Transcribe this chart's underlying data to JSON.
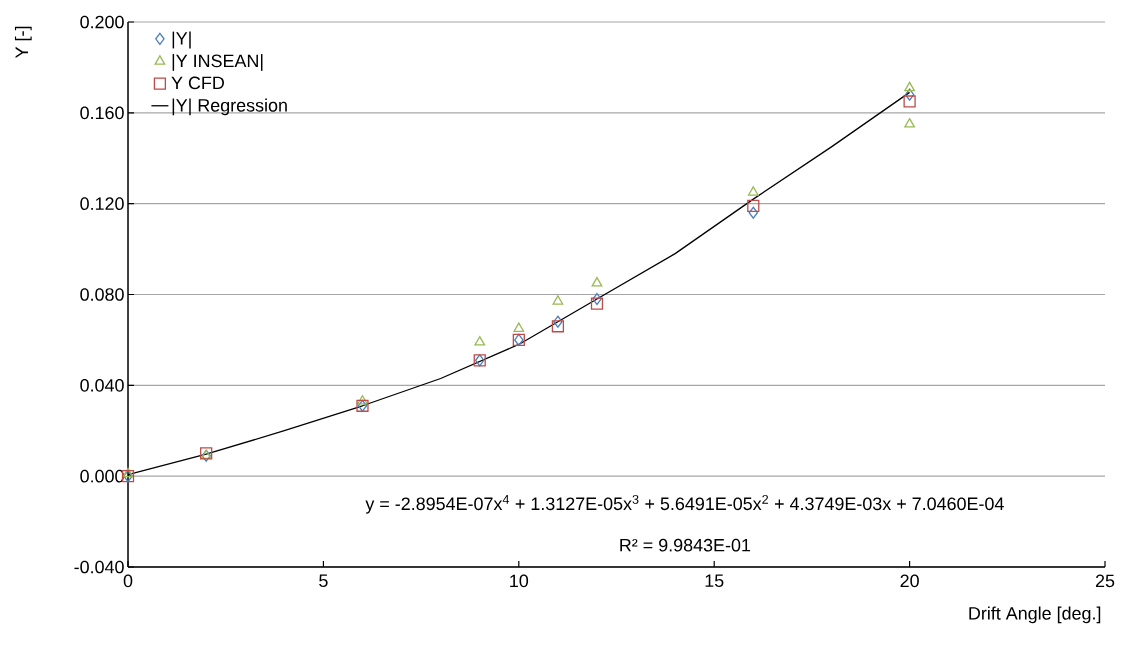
{
  "chart_data": {
    "type": "scatter",
    "xlabel": "Drift Angle [deg.]",
    "ylabel": "Y [-]",
    "xlim": [
      0,
      25
    ],
    "ylim": [
      -0.04,
      0.2
    ],
    "xticks": [
      0,
      5,
      10,
      15,
      20,
      25
    ],
    "yticks": [
      {
        "value": -0.04,
        "label": "-0.040"
      },
      {
        "value": 0,
        "label": "0.000"
      },
      {
        "value": 0.04,
        "label": "0.040"
      },
      {
        "value": 0.08,
        "label": "0.080"
      },
      {
        "value": 0.12,
        "label": "0.120"
      },
      {
        "value": 0.16,
        "label": "0.160"
      },
      {
        "value": 0.2,
        "label": "0.200"
      }
    ],
    "grid": "y",
    "legend": "top left",
    "series": [
      {
        "name": "|Y|",
        "color": "#4a7ebb",
        "marker": "diamond",
        "x": [
          0,
          2,
          6,
          9,
          10,
          11,
          12,
          16,
          20
        ],
        "values": [
          0.0,
          0.009,
          0.031,
          0.051,
          0.06,
          0.068,
          0.078,
          0.116,
          0.168
        ]
      },
      {
        "name": "|Y INSEAN|",
        "color": "#98b954",
        "marker": "triangle",
        "x": [
          0,
          2,
          6,
          9,
          10,
          11,
          12,
          16,
          20,
          20
        ],
        "values": [
          0.001,
          0.009,
          0.033,
          0.059,
          0.065,
          0.077,
          0.085,
          0.125,
          0.171,
          0.155
        ]
      },
      {
        "name": "Y CFD",
        "color": "#be4b48",
        "marker": "square",
        "x": [
          0,
          2,
          6,
          9,
          10,
          11,
          12,
          16,
          20
        ],
        "values": [
          0.0,
          0.01,
          0.031,
          0.051,
          0.06,
          0.066,
          0.076,
          0.119,
          0.165
        ]
      },
      {
        "name": "|Y| Regression",
        "type": "line",
        "color": "#000000",
        "marker": "none",
        "line_style": "solid",
        "x": [
          0,
          2,
          4,
          6,
          8,
          10,
          12,
          14,
          16,
          18,
          20
        ],
        "values": [
          0.0007,
          0.0097,
          0.02,
          0.031,
          0.043,
          0.058,
          0.078,
          0.098,
          0.122,
          0.145,
          0.169
        ]
      }
    ],
    "annotations": [
      "y = -2.8954E-07x$^{4}$ + 1.3127E-05x$^{3}$ + 5.6491E-05x$^{2}$ + 4.3749E-03x + 7.0460E-04",
      "R² = 9.9843E-01"
    ]
  }
}
